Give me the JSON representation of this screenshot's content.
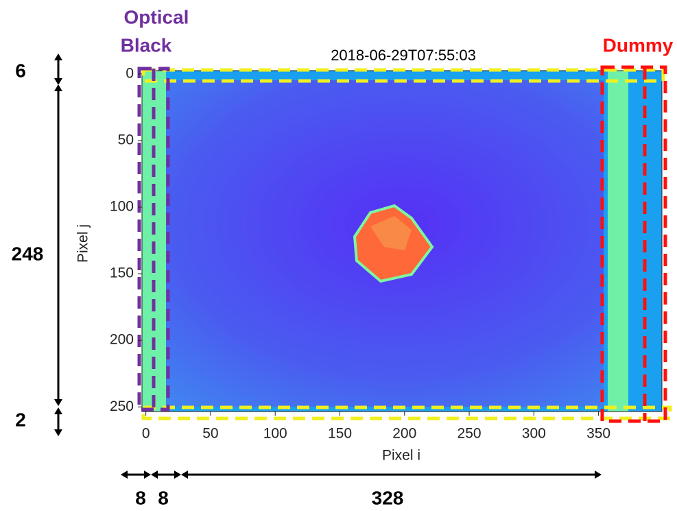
{
  "chart_data": {
    "type": "image",
    "title": "2018-06-29T07:55:03",
    "xlabel": "Pixel i",
    "ylabel": "Pixel j",
    "xlim": [
      -3,
      399
    ],
    "ylim": [
      -2.5,
      253.5
    ],
    "y_inverted": true,
    "xticks": [
      0,
      50,
      100,
      150,
      200,
      250,
      300,
      350
    ],
    "yticks": [
      0,
      50,
      100,
      150,
      200,
      250
    ],
    "annotations": [
      "Optical",
      "Black",
      "Dummy",
      "6",
      "248",
      "2",
      "8",
      "8",
      "328"
    ]
  }
}
